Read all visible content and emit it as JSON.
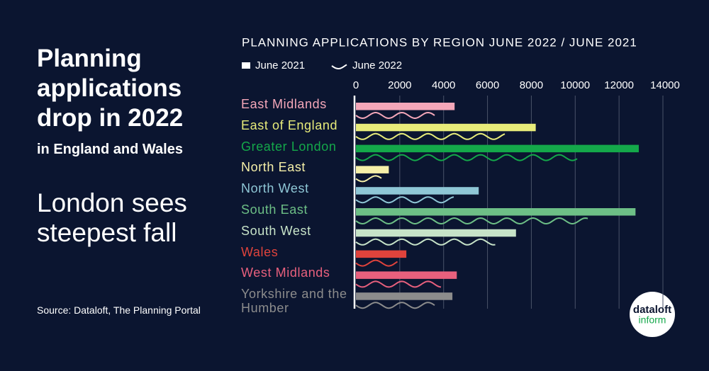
{
  "headline": "Planning applications drop in 2022",
  "subheadline": "in England and Wales",
  "tagline": "London sees steepest fall",
  "source": "Source: Dataloft, The Planning Portal",
  "logo": {
    "top": "dataloft",
    "bottom": "inform"
  },
  "chart_data": {
    "type": "bar",
    "title": "PLANNING APPLICATIONS BY REGION JUNE 2022 / JUNE 2021",
    "categories": [
      "East Midlands",
      "East of England",
      "Greater London",
      "North East",
      "North West",
      "South East",
      "South West",
      "Wales",
      "West Midlands",
      "Yorkshire and the Humber"
    ],
    "colors": [
      "#f4a7b9",
      "#e8ec7a",
      "#14a84a",
      "#f6f0a8",
      "#8fc7d6",
      "#6dbf86",
      "#c7e3c8",
      "#e0433c",
      "#e8607d",
      "#8c8c8c"
    ],
    "series": [
      {
        "name": "June 2021",
        "style": "bar",
        "values": [
          4500,
          8200,
          12900,
          1500,
          5600,
          12750,
          7300,
          2300,
          4600,
          4400
        ]
      },
      {
        "name": "June 2022",
        "style": "wave",
        "values": [
          3600,
          6800,
          10100,
          1200,
          4500,
          10600,
          6400,
          1900,
          3900,
          3600
        ]
      }
    ],
    "xlim": [
      0,
      14000
    ],
    "xticks": [
      0,
      2000,
      4000,
      6000,
      8000,
      10000,
      12000,
      14000
    ],
    "grid": true
  }
}
